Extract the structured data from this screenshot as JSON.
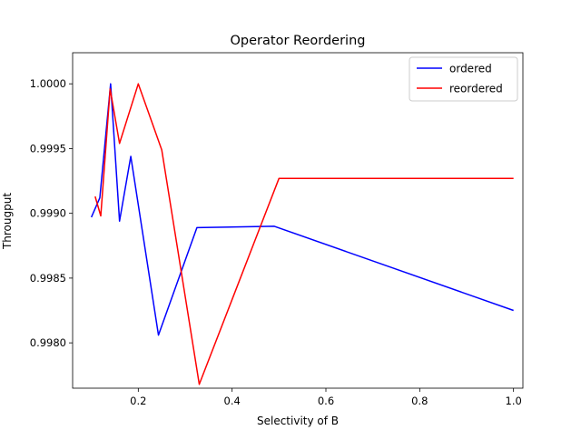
{
  "chart_data": {
    "type": "line",
    "title": "Operator Reordering",
    "xlabel": "Selectivity of B",
    "ylabel": "Througput",
    "xlim": [
      0.06,
      1.02
    ],
    "ylim": [
      0.99765,
      1.00024
    ],
    "grid": false,
    "legend_position": "top-right",
    "x_ticks": [
      {
        "value": 0.2,
        "label": "0.2"
      },
      {
        "value": 0.4,
        "label": "0.4"
      },
      {
        "value": 0.6,
        "label": "0.6"
      },
      {
        "value": 0.8,
        "label": "0.8"
      },
      {
        "value": 1.0,
        "label": "1.0"
      }
    ],
    "y_ticks": [
      {
        "value": 0.998,
        "label": "0.9980"
      },
      {
        "value": 0.9985,
        "label": "0.9985"
      },
      {
        "value": 0.999,
        "label": "0.9990"
      },
      {
        "value": 0.9995,
        "label": "0.9995"
      },
      {
        "value": 1.0,
        "label": "1.0000"
      }
    ],
    "series": [
      {
        "name": "ordered",
        "color": "#0000ff",
        "x": [
          0.1,
          0.118,
          0.141,
          0.16,
          0.184,
          0.243,
          0.325,
          0.49,
          1.0
        ],
        "y": [
          0.99897,
          0.99912,
          1.0,
          0.99894,
          0.99944,
          0.99806,
          0.99889,
          0.9989,
          0.99825
        ]
      },
      {
        "name": "reordered",
        "color": "#ff0000",
        "x": [
          0.108,
          0.12,
          0.14,
          0.16,
          0.2,
          0.25,
          0.33,
          0.5,
          1.0
        ],
        "y": [
          0.99913,
          0.99898,
          0.99996,
          0.99954,
          1.0,
          0.99949,
          0.99768,
          0.99927,
          0.99927
        ]
      }
    ]
  }
}
